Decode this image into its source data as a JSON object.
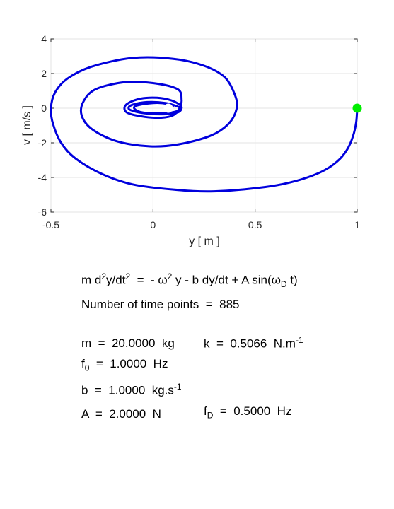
{
  "chart_data": {
    "type": "line",
    "title": "",
    "xlabel": "y  [ m ]",
    "ylabel": "v  [ m/s ]",
    "xlim": [
      -0.5,
      1
    ],
    "ylim": [
      -6,
      4
    ],
    "xticks": [
      -0.5,
      0,
      0.5,
      1
    ],
    "xtick_labels": [
      "-0.5",
      "0",
      "0.5",
      "1"
    ],
    "yticks": [
      -6,
      -4,
      -2,
      0,
      2,
      4
    ],
    "ytick_labels": [
      "-6",
      "-4",
      "-2",
      "0",
      "2",
      "4"
    ],
    "grid": true,
    "series": [
      {
        "color": "#0000dd",
        "points": [
          [
            1.0,
            0.0
          ],
          [
            0.995,
            -0.8
          ],
          [
            0.98,
            -1.6
          ],
          [
            0.95,
            -2.4
          ],
          [
            0.9,
            -3.1
          ],
          [
            0.82,
            -3.7
          ],
          [
            0.7,
            -4.2
          ],
          [
            0.55,
            -4.55
          ],
          [
            0.3,
            -4.8
          ],
          [
            0.1,
            -4.7
          ],
          [
            -0.1,
            -4.4
          ],
          [
            -0.25,
            -3.8
          ],
          [
            -0.38,
            -2.9
          ],
          [
            -0.45,
            -2.0
          ],
          [
            -0.49,
            -0.9
          ],
          [
            -0.5,
            0.0
          ],
          [
            -0.48,
            0.9
          ],
          [
            -0.42,
            1.7
          ],
          [
            -0.3,
            2.4
          ],
          [
            -0.1,
            2.9
          ],
          [
            0.1,
            2.85
          ],
          [
            0.25,
            2.45
          ],
          [
            0.35,
            1.8
          ],
          [
            0.4,
            0.8
          ],
          [
            0.41,
            0.0
          ],
          [
            0.37,
            -0.9
          ],
          [
            0.28,
            -1.6
          ],
          [
            0.12,
            -2.1
          ],
          [
            -0.02,
            -2.2
          ],
          [
            -0.18,
            -1.9
          ],
          [
            -0.3,
            -1.2
          ],
          [
            -0.35,
            -0.4
          ],
          [
            -0.34,
            0.4
          ],
          [
            -0.28,
            1.1
          ],
          [
            -0.14,
            1.5
          ],
          [
            0.0,
            1.45
          ],
          [
            0.12,
            1.1
          ],
          [
            0.14,
            0.5
          ],
          [
            0.13,
            0.0
          ],
          [
            0.1,
            -0.4
          ],
          [
            0.04,
            -0.55
          ],
          [
            -0.04,
            -0.5
          ],
          [
            -0.12,
            -0.3
          ],
          [
            -0.14,
            0.0
          ],
          [
            -0.12,
            0.3
          ],
          [
            -0.06,
            0.55
          ],
          [
            0.02,
            0.6
          ],
          [
            0.09,
            0.45
          ],
          [
            0.13,
            0.2
          ],
          [
            0.14,
            0.0
          ],
          [
            0.12,
            -0.25
          ],
          [
            0.05,
            -0.35
          ],
          [
            -0.04,
            -0.3
          ],
          [
            -0.1,
            -0.15
          ],
          [
            -0.12,
            0.0
          ],
          [
            -0.1,
            0.2
          ],
          [
            -0.03,
            0.35
          ],
          [
            0.06,
            0.3
          ],
          [
            0.12,
            0.1
          ],
          [
            0.13,
            0.0
          ],
          [
            0.11,
            -0.2
          ],
          [
            0.04,
            -0.3
          ],
          [
            -0.05,
            -0.25
          ],
          [
            -0.09,
            -0.05
          ],
          [
            -0.08,
            0.15
          ],
          [
            0.0,
            0.3
          ],
          [
            0.07,
            0.25
          ],
          [
            0.1,
            0.05
          ]
        ]
      }
    ],
    "markers": [
      {
        "x": 1.0,
        "y": 0.0,
        "color": "#00ee00"
      },
      {
        "x": 0.075,
        "y": 0.0,
        "color": "#ffffff"
      }
    ]
  },
  "info": {
    "equation_pre": "m d",
    "equation_sup1": "2",
    "equation_mid1": "y/dt",
    "equation_sup2": "2",
    "equation_mid2": "  =  - ω",
    "equation_sup3": "2",
    "equation_mid3": " y - b dy/dt + A sin(ω",
    "equation_sub": "D",
    "equation_post": " t)",
    "num_points": "Number of time points  =  885",
    "m_line": "m  =  20.0000  kg",
    "k_pre": "k  =  0.5066  N.m",
    "k_sup": "-1",
    "f0_pre": "f",
    "f0_sub": "0",
    "f0_post": "  =  1.0000  Hz",
    "b_pre": "b  =  1.0000  kg.s",
    "b_sup": "-1",
    "A_line": "A  =  2.0000  N",
    "fD_pre": "f",
    "fD_sub": "D",
    "fD_post": "  =  0.5000  Hz"
  }
}
